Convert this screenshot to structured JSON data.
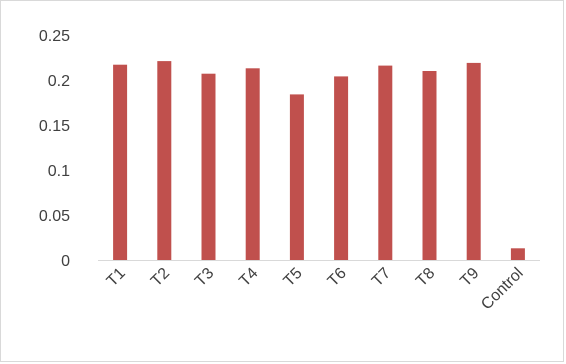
{
  "chart_data": {
    "type": "bar",
    "categories": [
      "T1",
      "T2",
      "T3",
      "T4",
      "T5",
      "T6",
      "T7",
      "T8",
      "T9",
      "Control"
    ],
    "values": [
      0.217,
      0.221,
      0.207,
      0.213,
      0.184,
      0.204,
      0.216,
      0.21,
      0.219,
      0.013
    ],
    "ylim": [
      0,
      0.25
    ],
    "yticks": [
      "0",
      "0.05",
      "0.1",
      "0.15",
      "0.2",
      "0.25"
    ],
    "title": "",
    "xlabel": "",
    "ylabel": "",
    "bar_color": "#c0504d",
    "axis_color": "#d9d9d9",
    "grid": false,
    "legend": "none",
    "x_tick_rotation": "-45deg"
  }
}
